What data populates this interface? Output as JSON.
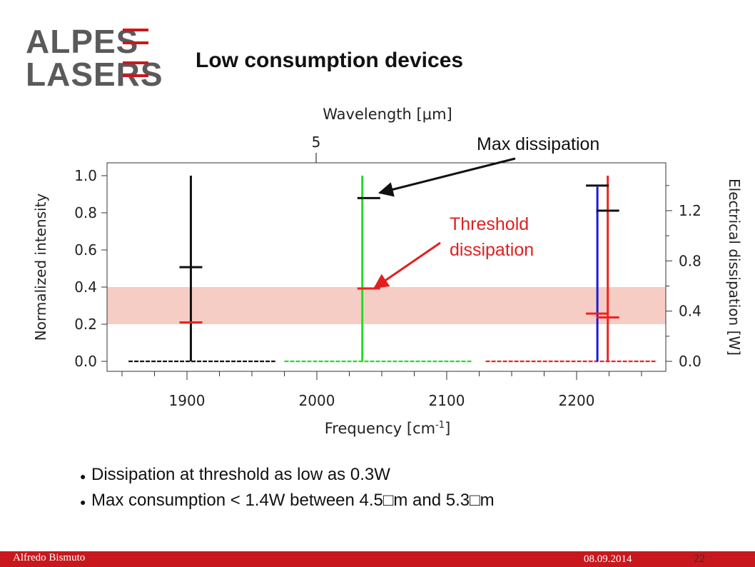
{
  "header": {
    "logo_line1": "ALPES",
    "logo_line2": "LASERS",
    "title": "Low consumption devices"
  },
  "colors": {
    "brand_red": "#c8181e",
    "logo_gray": "#5a5a5a",
    "band": "#f6cdc4",
    "series_black": "#111111",
    "series_green": "#22dd22",
    "series_blue": "#1a1add",
    "series_red": "#ee2222",
    "marker_red": "#ee2222",
    "annotation_red": "#e02020"
  },
  "chart_data": {
    "type": "line",
    "xlabel": "Frequency [cm-1]",
    "x_ticks": [
      "1900",
      "2000",
      "2100",
      "2200"
    ],
    "xlim": [
      1850,
      2270
    ],
    "top_axis_label": "Wavelength [μm]",
    "top_axis_tick": "5",
    "ylabel": "Normalized intensity",
    "ylim": [
      0,
      1.0
    ],
    "y_ticks": [
      "0.0",
      "0.2",
      "0.4",
      "0.6",
      "0.8",
      "1.0"
    ],
    "y2label": "Electrical dissipation [W]",
    "y2lim": [
      0,
      1.5
    ],
    "y2_ticks": [
      "0.0",
      "0.4",
      "0.8",
      "1.2"
    ],
    "shaded_band_normalized": [
      0.2,
      0.4
    ],
    "series": [
      {
        "color_key": "series_black",
        "peak_x": 1903,
        "peak_y": 1.0
      },
      {
        "color_key": "series_green",
        "peak_x": 2035,
        "peak_y": 1.0
      },
      {
        "color_key": "series_blue",
        "peak_x": 2216,
        "peak_y": 0.94
      },
      {
        "color_key": "series_red",
        "peak_x": 2224,
        "peak_y": 1.0
      }
    ],
    "max_dissipation_W": [
      {
        "x": 1903,
        "y": 0.75
      },
      {
        "x": 2040,
        "y": 1.3
      },
      {
        "x": 2216,
        "y": 1.4
      },
      {
        "x": 2224,
        "y": 1.2
      }
    ],
    "threshold_dissipation_W": [
      {
        "x": 1903,
        "y": 0.31
      },
      {
        "x": 2040,
        "y": 0.58
      },
      {
        "x": 2216,
        "y": 0.38
      },
      {
        "x": 2224,
        "y": 0.35
      }
    ],
    "annotations": {
      "max": "Max dissipation",
      "threshold_line1": "Threshold",
      "threshold_line2": "dissipation"
    }
  },
  "bullets": [
    "Dissipation at threshold as low as 0.3W",
    "Max consumption < 1.4W between 4.5□m and 5.3□m"
  ],
  "footer": {
    "author": "Alfredo Bismuto",
    "date": "08.09.2014",
    "page": "22"
  }
}
